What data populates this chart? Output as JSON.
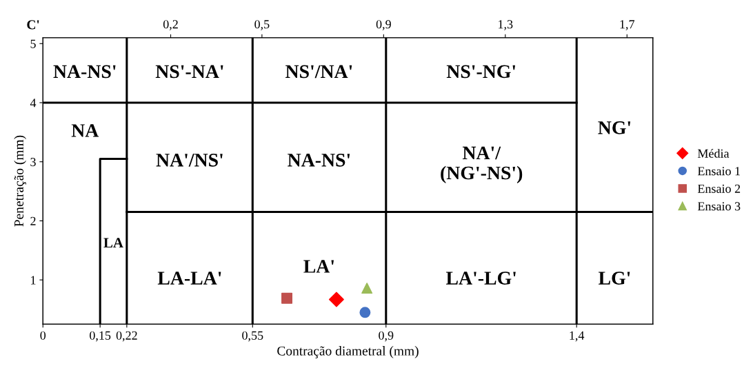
{
  "chart_data": {
    "type": "scatter",
    "xlabel": "Contração diametral (mm)",
    "ylabel": "Penetração (mm)",
    "x2label": "C'",
    "xlim": [
      0,
      1.6
    ],
    "xticks": [
      0,
      {
        "value": 0.15,
        "label": "0,15"
      },
      {
        "value": 0.22,
        "label": "0,22"
      },
      {
        "value": 0.55,
        "label": "0,55"
      },
      {
        "value": 0.9,
        "label": "0,9"
      },
      {
        "value": 1.4,
        "label": "1,4"
      }
    ],
    "x2lim": [
      -0.22,
      1.785
    ],
    "x2ticks": [
      {
        "value": 0.2,
        "label": "0,2"
      },
      {
        "value": 0.5,
        "label": "0,5"
      },
      {
        "value": 0.9,
        "label": "0,9"
      },
      {
        "value": 1.3,
        "label": "1,3"
      },
      {
        "value": 1.7,
        "label": "1,7"
      }
    ],
    "ylim": [
      0.25,
      5.1
    ],
    "yticks": [
      1,
      2,
      3,
      4,
      5
    ],
    "grid": false,
    "legend": "right",
    "series": [
      {
        "name": "Média",
        "color": "#ff0000",
        "marker": "diamond",
        "x": [
          0.77
        ],
        "values": [
          0.67
        ]
      },
      {
        "name": "Ensaio 1",
        "color": "#4472c4",
        "marker": "circle",
        "x": [
          0.845
        ],
        "values": [
          0.45
        ]
      },
      {
        "name": "Ensaio 2",
        "color": "#c0504d",
        "marker": "square",
        "x": [
          0.64
        ],
        "values": [
          0.69
        ]
      },
      {
        "name": "Ensaio 3",
        "color": "#9bbb59",
        "marker": "triangle",
        "x": [
          0.85
        ],
        "values": [
          0.86
        ]
      },
      {
        "type": "line",
        "color": "#000000",
        "x": [
          0,
          1.4
        ],
        "values": [
          4,
          4
        ]
      },
      {
        "type": "line",
        "color": "#000000",
        "x": [
          0.22,
          1.6
        ],
        "values": [
          2.15,
          2.15
        ]
      },
      {
        "type": "line",
        "color": "#000000",
        "x": [
          0.22,
          0.22
        ],
        "values": [
          0.25,
          5.1
        ]
      },
      {
        "type": "line",
        "color": "#000000",
        "x": [
          0.55,
          0.55
        ],
        "values": [
          0.25,
          5.1
        ]
      },
      {
        "type": "line",
        "color": "#000000",
        "x": [
          0.9,
          0.9
        ],
        "values": [
          0.25,
          5.1
        ]
      },
      {
        "type": "line",
        "color": "#000000",
        "x": [
          1.4,
          1.4
        ],
        "values": [
          0.25,
          5.1
        ]
      },
      {
        "type": "line",
        "color": "#000000",
        "x": [
          0.15,
          0.15,
          0.22
        ],
        "values": [
          0.25,
          3.05,
          3.05
        ]
      }
    ],
    "annotations": [
      "NA-NS'",
      "NS'-NA'",
      "NS'/NA'",
      "NS'-NG'",
      "NA",
      "NG'",
      "NA'/NS'",
      "NA-NS'",
      "NA'/\n(NG'-NS')",
      "LA",
      "LA-LA'",
      "LA'",
      "LA'-LG'",
      "LG'"
    ]
  }
}
